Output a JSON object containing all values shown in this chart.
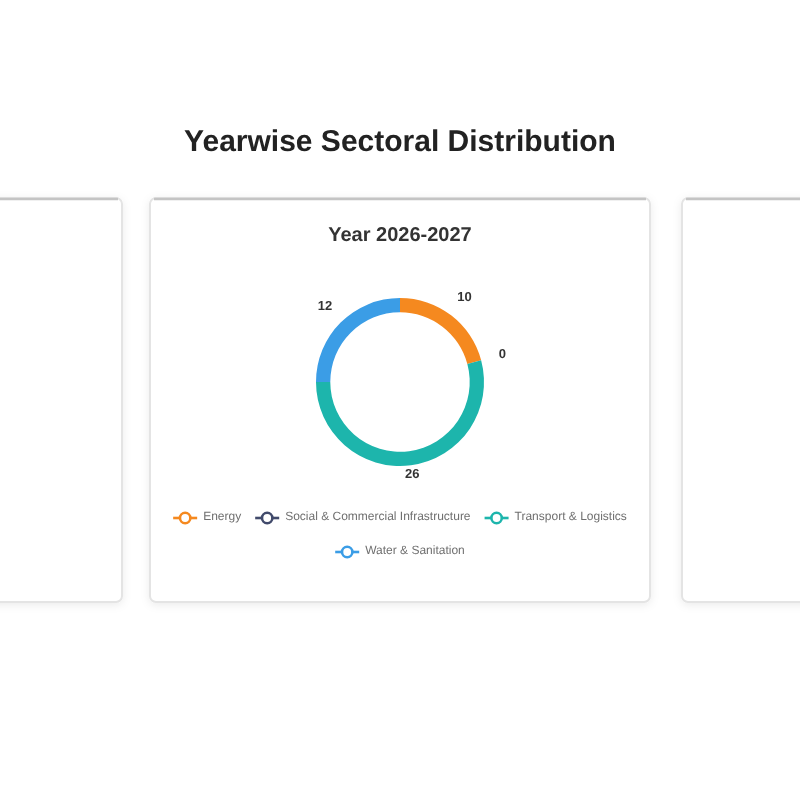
{
  "chart_data": {
    "type": "donut",
    "title": "Yearwise Sectoral Distribution",
    "subtitle": "Year 2026-2027",
    "categories": [
      "Energy",
      "Social & Commercial Infrastructure",
      "Transport & Logistics",
      "Water & Sanitation"
    ],
    "values": [
      10,
      0,
      26,
      12
    ],
    "value_labels": [
      "10",
      "0",
      "26",
      "12"
    ],
    "colors": [
      "#f5891f",
      "#414a6b",
      "#1db5ac",
      "#3b9de6"
    ],
    "legend": "bottom"
  }
}
